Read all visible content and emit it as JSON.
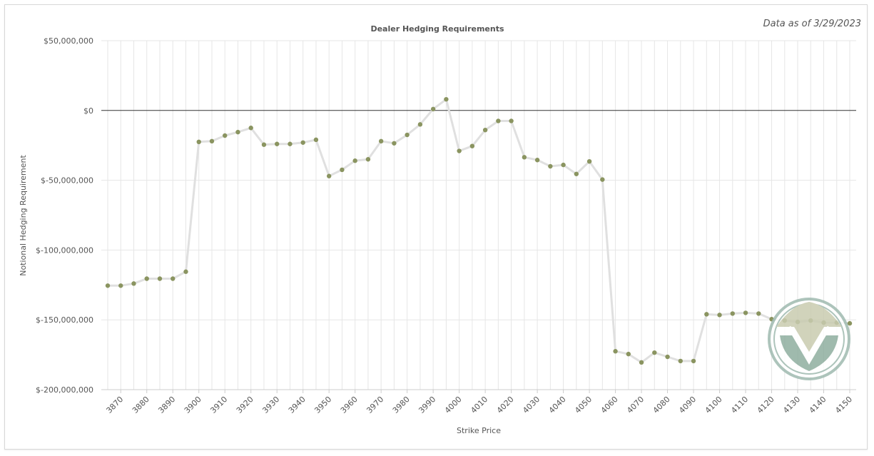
{
  "data_as_of": "Data as of 3/29/2023",
  "colors": {
    "line": "#e0e0e0",
    "marker": "#8a9460",
    "grid": "#e6e6e6",
    "zero_line": "#333333",
    "logo_light": "#c9ccb0",
    "logo_teal": "#8fae9f"
  },
  "logo": {
    "icon": "v-shield-logo-icon"
  },
  "chart_data": {
    "type": "line",
    "title": "Dealer Hedging Requirements",
    "xlabel": "Strike Price",
    "ylabel": "Notional Hedging Requirement",
    "ylim": [
      -200000000,
      50000000
    ],
    "yticks": [
      50000000,
      0,
      -50000000,
      -100000000,
      -150000000,
      -200000000
    ],
    "ytick_labels": [
      "$50,000,000",
      "$0",
      "$-50,000,000",
      "$-100,000,000",
      "$-150,000,000",
      "$-200,000,000"
    ],
    "xlim": [
      3865,
      4150
    ],
    "xticks": [
      3870,
      3880,
      3890,
      3900,
      3910,
      3920,
      3930,
      3940,
      3950,
      3960,
      3970,
      3980,
      3990,
      4000,
      4010,
      4020,
      4030,
      4040,
      4050,
      4060,
      4070,
      4080,
      4090,
      4100,
      4110,
      4120,
      4130,
      4140,
      4150
    ],
    "grid": true,
    "x": [
      3865,
      3870,
      3875,
      3880,
      3885,
      3890,
      3895,
      3900,
      3905,
      3910,
      3915,
      3920,
      3925,
      3930,
      3935,
      3940,
      3945,
      3950,
      3955,
      3960,
      3965,
      3970,
      3975,
      3980,
      3985,
      3990,
      3995,
      4000,
      4005,
      4010,
      4015,
      4020,
      4025,
      4030,
      4035,
      4040,
      4045,
      4050,
      4055,
      4060,
      4065,
      4070,
      4075,
      4080,
      4085,
      4090,
      4095,
      4100,
      4105,
      4110,
      4115,
      4120,
      4125,
      4130,
      4135,
      4140,
      4145,
      4150
    ],
    "series": [
      {
        "values": [
          -125500000,
          -125500000,
          -124000000,
          -120500000,
          -120500000,
          -120500000,
          -115500000,
          -22500000,
          -22000000,
          -18000000,
          -15500000,
          -12500000,
          -24500000,
          -24000000,
          -24000000,
          -23000000,
          -21000000,
          -47000000,
          -42500000,
          -36000000,
          -35000000,
          -22000000,
          -23500000,
          -17500000,
          -10000000,
          1000000,
          8000000,
          -29000000,
          -25500000,
          -14000000,
          -7500000,
          -7500000,
          -33500000,
          -35500000,
          -40000000,
          -39000000,
          -45500000,
          -36500000,
          -49500000,
          -172500000,
          -174500000,
          -180500000,
          -173500000,
          -176500000,
          -179500000,
          -179500000,
          -146000000,
          -146500000,
          -145500000,
          -145000000,
          -145500000,
          -149500000,
          -150500000,
          -151500000,
          -150500000,
          -152000000,
          -152000000,
          -152500000
        ]
      }
    ]
  }
}
